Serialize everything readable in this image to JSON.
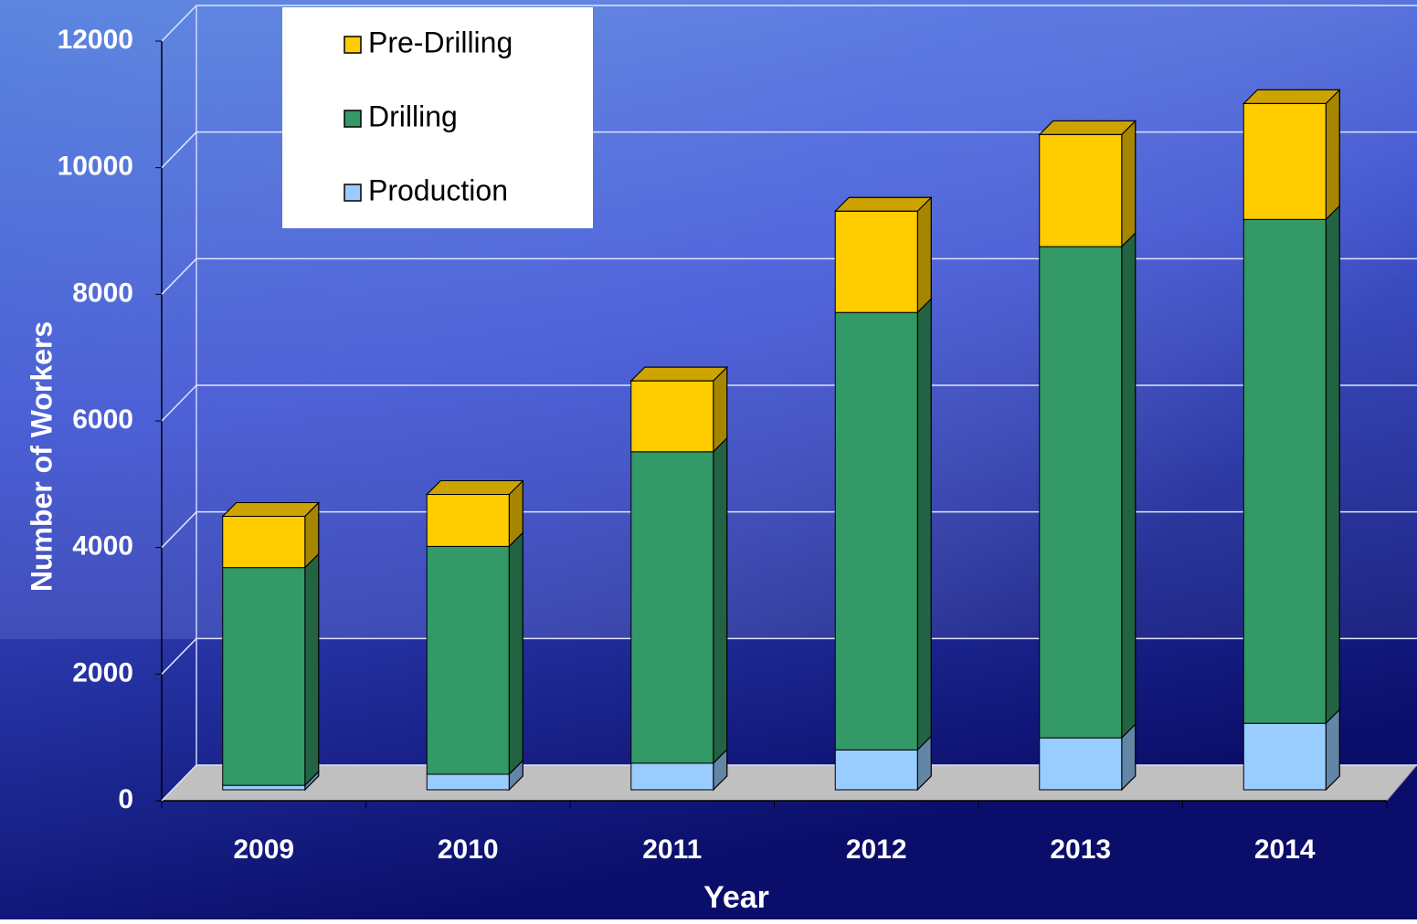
{
  "chart_data": {
    "type": "bar3d_stacked",
    "categories": [
      "2009",
      "2010",
      "2011",
      "2012",
      "2013",
      "2014"
    ],
    "series": [
      {
        "name": "Production",
        "color": "#99ccff",
        "values": [
          70,
          245,
          420,
          630,
          820,
          1050
        ]
      },
      {
        "name": "Drilling",
        "color": "#339966",
        "values": [
          3440,
          3600,
          4920,
          6910,
          7760,
          7960
        ]
      },
      {
        "name": "Pre-Drilling",
        "color": "#ffcc00",
        "values": [
          810,
          820,
          1120,
          1600,
          1770,
          1830
        ]
      }
    ],
    "ylim": [
      0,
      12000
    ],
    "yticks": [
      0,
      2000,
      4000,
      6000,
      8000,
      10000,
      12000
    ],
    "ylabel": "Number of Workers",
    "xlabel": "Year",
    "grid": true
  }
}
